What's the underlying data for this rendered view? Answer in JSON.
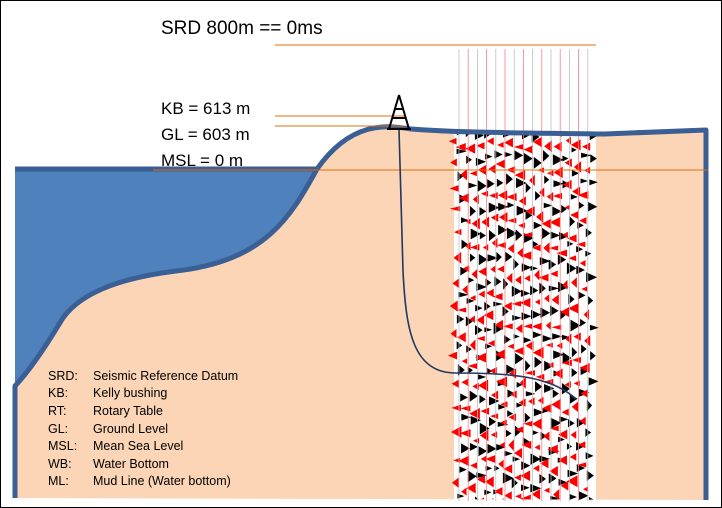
{
  "datums": {
    "srd": "SRD 800m == 0ms",
    "kb": "KB = 613 m",
    "gl": "GL = 603 m",
    "msl": "MSL = 0 m"
  },
  "legend": [
    {
      "abbr": "SRD:",
      "desc": "Seismic Reference Datum"
    },
    {
      "abbr": "KB:",
      "desc": "Kelly bushing"
    },
    {
      "abbr": "RT:",
      "desc": "Rotary Table"
    },
    {
      "abbr": "GL:",
      "desc": "Ground Level"
    },
    {
      "abbr": "MSL:",
      "desc": "Mean Sea Level"
    },
    {
      "abbr": "WB:",
      "desc": "Water Bottom"
    },
    {
      "abbr": "ML:",
      "desc": "Mud Line (Water bottom)"
    }
  ],
  "colors": {
    "water": "#4f81bd",
    "earth": "#fbd5b5",
    "outline": "#3a5f95",
    "datum_line": "#e46c0a",
    "wiggle_dark": "#000000",
    "wiggle_red": "#ff0000",
    "well": "#1f3864"
  },
  "icons": {
    "rig": "drilling-rig-icon"
  }
}
